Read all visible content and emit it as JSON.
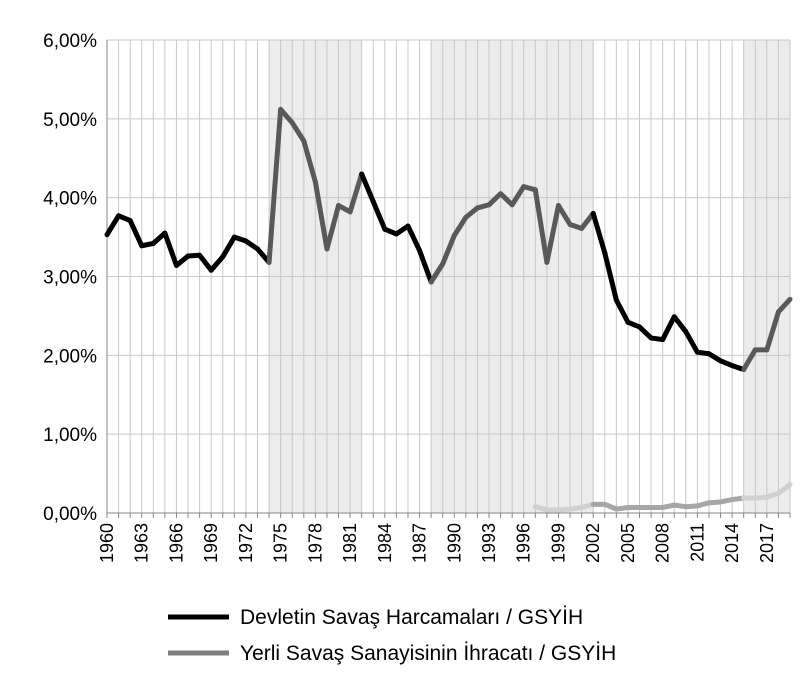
{
  "chart_data": {
    "type": "line",
    "title": "",
    "xlabel": "",
    "ylabel": "",
    "ylim": [
      0,
      6
    ],
    "y_tick_labels": [
      "0,00%",
      "1,00%",
      "2,00%",
      "3,00%",
      "4,00%",
      "5,00%",
      "6,00%"
    ],
    "x_tick_labels": [
      "1960",
      "1963",
      "1966",
      "1969",
      "1972",
      "1975",
      "1978",
      "1981",
      "1984",
      "1987",
      "1990",
      "1993",
      "1996",
      "1999",
      "2002",
      "2005",
      "2008",
      "2011",
      "2014",
      "2017"
    ],
    "x": [
      1960,
      1961,
      1962,
      1963,
      1964,
      1965,
      1966,
      1967,
      1968,
      1969,
      1970,
      1971,
      1972,
      1973,
      1974,
      1975,
      1976,
      1977,
      1978,
      1979,
      1980,
      1981,
      1982,
      1983,
      1984,
      1985,
      1986,
      1987,
      1988,
      1989,
      1990,
      1991,
      1992,
      1993,
      1994,
      1995,
      1996,
      1997,
      1998,
      1999,
      2000,
      2001,
      2002,
      2003,
      2004,
      2005,
      2006,
      2007,
      2008,
      2009,
      2010,
      2011,
      2012,
      2013,
      2014,
      2015,
      2016,
      2017,
      2018,
      2019
    ],
    "grid": true,
    "legend_position": "bottom",
    "shaded_periods": [
      [
        1974,
        1982
      ],
      [
        1988,
        2002
      ],
      [
        2015,
        2019
      ]
    ],
    "colors": {
      "series1_normal": "#000000",
      "series1_shaded": "#595959",
      "series2_normal": "#a6a6a6",
      "series2_shaded": "#d0d0d0",
      "shade_band": "#ececec",
      "gridline": "#c8c8c8",
      "axis": "#868686"
    },
    "series": [
      {
        "name": "Devletin Savaş Harcamaları / GSYİH",
        "values": [
          3.53,
          3.77,
          3.71,
          3.39,
          3.42,
          3.55,
          3.14,
          3.26,
          3.27,
          3.08,
          3.25,
          3.5,
          3.45,
          3.35,
          3.18,
          5.12,
          4.95,
          4.72,
          4.2,
          3.35,
          3.9,
          3.82,
          4.3,
          3.95,
          3.6,
          3.54,
          3.64,
          3.33,
          2.93,
          3.16,
          3.52,
          3.75,
          3.87,
          3.91,
          4.05,
          3.91,
          4.14,
          4.1,
          3.18,
          3.9,
          3.66,
          3.61,
          3.8,
          3.3,
          2.7,
          2.42,
          2.36,
          2.22,
          2.2,
          2.49,
          2.3,
          2.04,
          2.02,
          1.93,
          1.87,
          1.82,
          2.07,
          2.07,
          2.55,
          2.71
        ]
      },
      {
        "name": "Yerli Savaş Sanayisinin İhracatı / GSYİH",
        "values": [
          null,
          null,
          null,
          null,
          null,
          null,
          null,
          null,
          null,
          null,
          null,
          null,
          null,
          null,
          null,
          null,
          null,
          null,
          null,
          null,
          null,
          null,
          null,
          null,
          null,
          null,
          null,
          null,
          null,
          null,
          null,
          null,
          null,
          null,
          null,
          null,
          null,
          0.08,
          0.04,
          0.04,
          0.05,
          0.07,
          0.11,
          0.11,
          0.05,
          0.07,
          0.07,
          0.07,
          0.07,
          0.1,
          0.08,
          0.09,
          0.13,
          0.14,
          0.17,
          0.19,
          0.19,
          0.2,
          0.25,
          0.36
        ]
      }
    ]
  }
}
